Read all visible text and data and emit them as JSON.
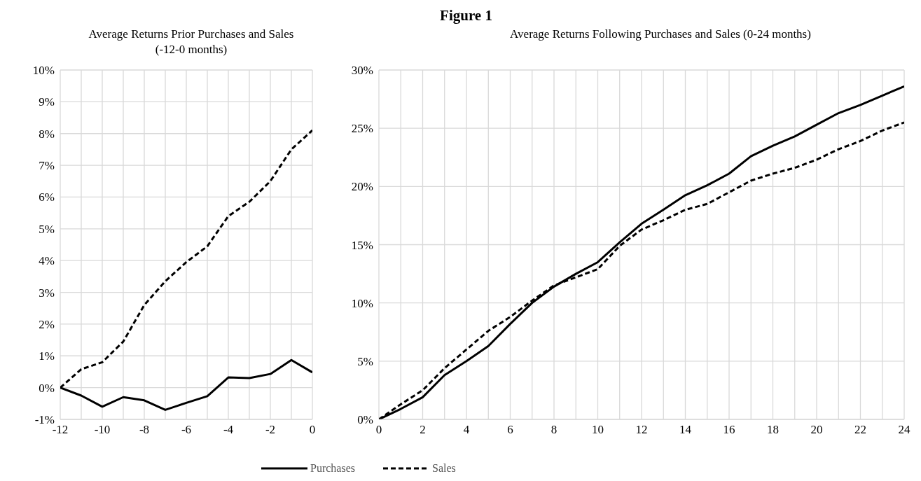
{
  "chart_data": [
    {
      "type": "line",
      "title": "Average Returns Prior Purchases and Sales (-12-0 months)",
      "annotations": [
        "Figure 1"
      ],
      "x": [
        -12,
        -11,
        -10,
        -9,
        -8,
        -7,
        -6,
        -5,
        -4,
        -3,
        -2,
        -1,
        0
      ],
      "xlim": [
        -12,
        0
      ],
      "xticks": [
        -12,
        -10,
        -8,
        -6,
        -4,
        -2,
        0
      ],
      "ylim": [
        -1,
        10
      ],
      "yticks": [
        {
          "value": -1,
          "label": "-1%"
        },
        {
          "value": 0,
          "label": "0%"
        },
        {
          "value": 1,
          "label": "1%"
        },
        {
          "value": 2,
          "label": "2%"
        },
        {
          "value": 3,
          "label": "3%"
        },
        {
          "value": 4,
          "label": "4%"
        },
        {
          "value": 5,
          "label": "5%"
        },
        {
          "value": 6,
          "label": "6%"
        },
        {
          "value": 7,
          "label": "7%"
        },
        {
          "value": 8,
          "label": "8%"
        },
        {
          "value": 9,
          "label": "9%"
        },
        {
          "value": 10,
          "label": "10%"
        }
      ],
      "grid": true,
      "legend": false,
      "marker": "none",
      "series": [
        {
          "color": "#000000",
          "line_style": "solid",
          "values": [
            0,
            -0.25,
            -0.6,
            -0.3,
            -0.4,
            -0.7,
            -0.48,
            -0.27,
            0.32,
            0.3,
            0.43,
            0.87,
            0.48
          ]
        },
        {
          "color": "#000000",
          "line_style": "dashed",
          "values": [
            0,
            0.58,
            0.8,
            1.45,
            2.6,
            3.35,
            3.95,
            4.45,
            5.4,
            5.85,
            6.5,
            7.5,
            8.1
          ]
        }
      ]
    },
    {
      "type": "line",
      "title": "Average Returns Following Purchases and Sales (0-24 months)",
      "x": [
        0,
        1,
        2,
        3,
        4,
        5,
        6,
        7,
        8,
        9,
        10,
        11,
        12,
        13,
        14,
        15,
        16,
        17,
        18,
        19,
        20,
        21,
        22,
        23,
        24
      ],
      "xlim": [
        0,
        24
      ],
      "xticks": [
        0,
        2,
        4,
        6,
        8,
        10,
        12,
        14,
        16,
        18,
        20,
        22,
        24
      ],
      "ylim": [
        0,
        30
      ],
      "yticks": [
        {
          "value": 0,
          "label": "0%"
        },
        {
          "value": 5,
          "label": "5%"
        },
        {
          "value": 10,
          "label": "10%"
        },
        {
          "value": 15,
          "label": "15%"
        },
        {
          "value": 20,
          "label": "20%"
        },
        {
          "value": 25,
          "label": "25%"
        },
        {
          "value": 30,
          "label": "30%"
        }
      ],
      "grid": true,
      "legend": "bottom",
      "marker": "none",
      "series": [
        {
          "name": "Purchases",
          "color": "#000000",
          "line_style": "solid",
          "values": [
            0,
            0.9,
            1.9,
            3.8,
            5.0,
            6.3,
            8.2,
            10.0,
            11.4,
            12.5,
            13.5,
            15.2,
            16.8,
            18.0,
            19.25,
            20.1,
            21.1,
            22.6,
            23.5,
            24.3,
            25.3,
            26.3,
            27.0,
            27.8,
            28.6
          ]
        },
        {
          "name": "Sales",
          "color": "#000000",
          "line_style": "dashed",
          "values": [
            0,
            1.3,
            2.5,
            4.4,
            6.0,
            7.6,
            8.8,
            10.2,
            11.5,
            12.2,
            12.9,
            14.9,
            16.3,
            17.1,
            18.0,
            18.5,
            19.5,
            20.5,
            21.1,
            21.6,
            22.3,
            23.2,
            23.9,
            24.8,
            25.5
          ]
        }
      ]
    }
  ]
}
